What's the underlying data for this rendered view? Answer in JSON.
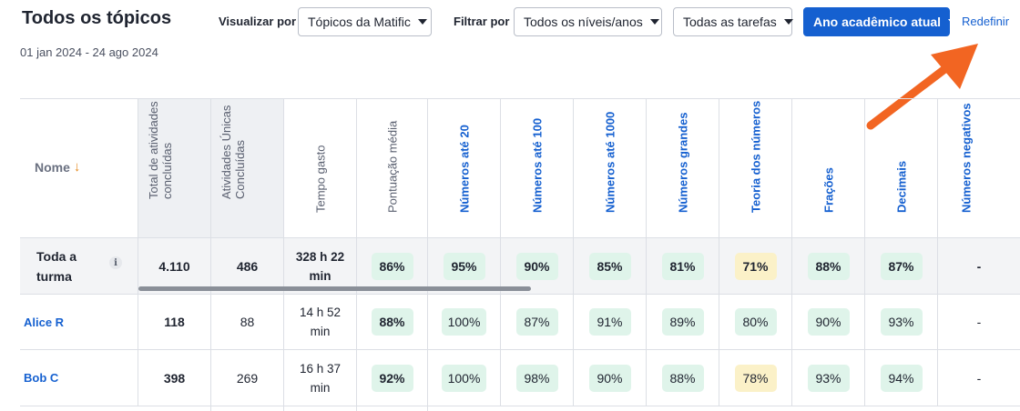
{
  "header": {
    "title": "Todos os tópicos",
    "date_range": "01 jan 2024 - 24 ago 2024",
    "view_label": "Visualizar por",
    "view_value": "Tópicos da Matific",
    "filter_label": "Filtrar por",
    "levels_value": "Todos os níveis/anos",
    "tasks_value": "Todas as tarefas",
    "year_value": "Ano acadêmico atual",
    "reset_label": "Redefinir"
  },
  "colors": {
    "accent": "#1560d0",
    "arrow": "#f26522",
    "pill_green": "#dff4ea",
    "pill_yellow": "#fbf1c8"
  },
  "table": {
    "name_header": "Nome",
    "columns": [
      "Total de atividades concluídas",
      "Atividades Únicas Concluídas",
      "Tempo gasto",
      "Pontuação média",
      "Números até 20",
      "Números até 100",
      "Números até 1000",
      "Números grandes",
      "Teoria dos números",
      "Frações",
      "Decimais",
      "Números negativos"
    ],
    "summary": {
      "name_line1": "Toda a",
      "name_line2": "turma",
      "total": "4.110",
      "unique": "486",
      "time_line1": "328 h 22",
      "time_line2": "min",
      "avg": "86%",
      "topics": [
        "95%",
        "90%",
        "85%",
        "81%",
        "71%",
        "88%",
        "87%",
        "-"
      ]
    },
    "rows": [
      {
        "name": "Alice R",
        "total": "118",
        "unique": "88",
        "time_line1": "14 h 52",
        "time_line2": "min",
        "avg": "88%",
        "topics": [
          "100%",
          "87%",
          "91%",
          "89%",
          "80%",
          "90%",
          "93%",
          "-"
        ]
      },
      {
        "name": "Bob C",
        "total": "398",
        "unique": "269",
        "time_line1": "16 h 37",
        "time_line2": "min",
        "avg": "92%",
        "topics": [
          "100%",
          "98%",
          "90%",
          "88%",
          "78%",
          "93%",
          "94%",
          "-"
        ]
      }
    ]
  }
}
